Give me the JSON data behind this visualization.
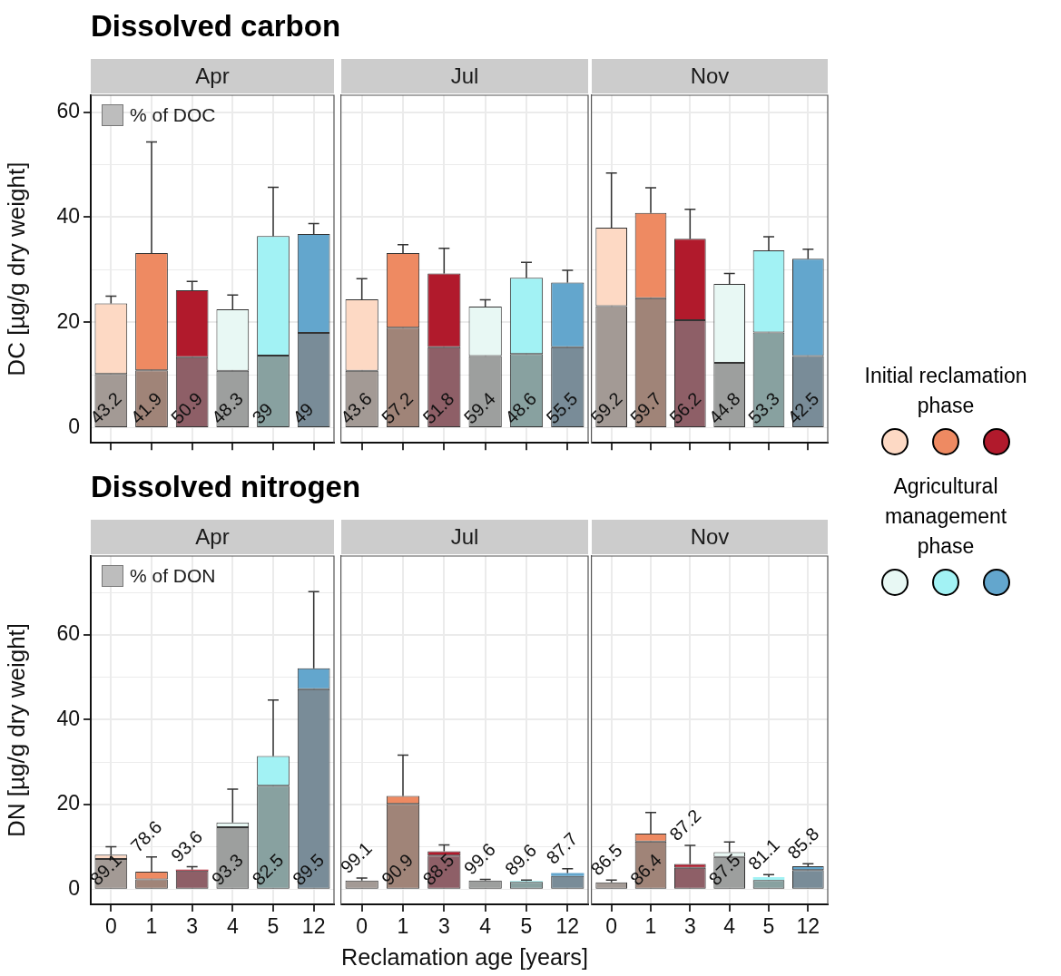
{
  "chart_data": [
    {
      "type": "bar",
      "title": "Apr",
      "subtitle": "Dissolved carbon",
      "ylabel": "DC [µg/g dry weight]",
      "categories": [
        "0",
        "1",
        "3",
        "4",
        "5",
        "12"
      ],
      "stacked": true,
      "ylim": [
        -2.9,
        63.2
      ],
      "yticks": [
        0,
        {
          "value": 10,
          "label": null
        },
        20,
        {
          "value": 30,
          "label": null
        },
        40,
        {
          "value": 50,
          "label": null
        },
        60
      ],
      "grid": true,
      "legend": "top left",
      "tick_labels": "y",
      "annotations": [
        "43.2",
        "41.9",
        "50.9",
        "48.3",
        "39",
        "49"
      ],
      "series": [
        {
          "name": "% of DOC",
          "color": "#bdbdbd",
          "colors": [
            "#a39a95",
            "#a08478",
            "#8e5f67",
            "#9d9f9e",
            "#88a1a0",
            "#798c98"
          ],
          "values": [
            10.2,
            10.9,
            13.4,
            10.8,
            13.7,
            18.0
          ]
        },
        {
          "colors": [
            "#fdd9c4",
            "#ee8a62",
            "#b11a2c",
            "#e8f8f4",
            "#a2f2f4",
            "#63a6cd"
          ],
          "values": [
            13.4,
            22.3,
            12.7,
            11.7,
            22.7,
            18.8
          ],
          "errors": [
            [
              23.6,
              25.0
            ],
            [
              33.2,
              54.3
            ],
            [
              26.1,
              27.8
            ],
            [
              22.5,
              25.2
            ],
            [
              36.4,
              45.7
            ],
            [
              36.8,
              38.8
            ]
          ]
        }
      ]
    },
    {
      "type": "bar",
      "title": "Jul",
      "categories": [
        "0",
        "1",
        "3",
        "4",
        "5",
        "12"
      ],
      "stacked": true,
      "ylim": [
        -2.9,
        63.2
      ],
      "yticks": [
        0,
        {
          "value": 10,
          "label": null
        },
        20,
        {
          "value": 30,
          "label": null
        },
        40,
        {
          "value": 50,
          "label": null
        },
        60
      ],
      "grid": true,
      "tick_labels": false,
      "annotations": [
        "43.6",
        "57.2",
        "51.8",
        "59.4",
        "48.6",
        "55.5"
      ],
      "series": [
        {
          "colors": [
            "#a39a95",
            "#a08478",
            "#8e5f67",
            "#9d9f9e",
            "#88a1a0",
            "#798c98"
          ],
          "values": [
            10.8,
            19.0,
            15.3,
            13.6,
            14.0,
            15.3
          ]
        },
        {
          "colors": [
            "#fdd9c4",
            "#ee8a62",
            "#b11a2c",
            "#e8f8f4",
            "#a2f2f4",
            "#63a6cd"
          ],
          "values": [
            13.6,
            14.2,
            14.0,
            9.4,
            14.5,
            12.3
          ],
          "errors": [
            [
              24.4,
              28.3
            ],
            [
              33.2,
              34.8
            ],
            [
              29.3,
              34.1
            ],
            [
              23.0,
              24.3
            ],
            [
              28.5,
              31.4
            ],
            [
              27.6,
              29.9
            ]
          ]
        }
      ]
    },
    {
      "type": "bar",
      "title": "Nov",
      "categories": [
        "0",
        "1",
        "3",
        "4",
        "5",
        "12"
      ],
      "stacked": true,
      "ylim": [
        -2.9,
        63.2
      ],
      "yticks": [
        0,
        {
          "value": 10,
          "label": null
        },
        20,
        {
          "value": 30,
          "label": null
        },
        40,
        {
          "value": 50,
          "label": null
        },
        60
      ],
      "grid": true,
      "tick_labels": false,
      "annotations": [
        "59.2",
        "59.7",
        "56.2",
        "44.8",
        "53.3",
        "42.5",
        "Initial reclamation phase",
        "Agricultural management phase"
      ],
      "series": [
        {
          "colors": [
            "#a39a95",
            "#a08478",
            "#8e5f67",
            "#9d9f9e",
            "#88a1a0",
            "#798c98"
          ],
          "values": [
            23.1,
            24.6,
            20.4,
            12.3,
            18.1,
            13.6
          ]
        },
        {
          "colors": [
            "#fdd9c4",
            "#ee8a62",
            "#b11a2c",
            "#e8f8f4",
            "#a2f2f4",
            "#63a6cd"
          ],
          "values": [
            14.9,
            16.2,
            15.5,
            15.0,
            15.6,
            18.5
          ],
          "errors": [
            [
              38.0,
              48.4
            ],
            [
              40.8,
              45.6
            ],
            [
              35.9,
              41.5
            ],
            [
              27.3,
              29.3
            ],
            [
              33.7,
              36.3
            ],
            [
              32.1,
              33.9
            ]
          ]
        }
      ]
    },
    {
      "type": "bar",
      "title": "Apr",
      "subtitle": "Dissolved nitrogen",
      "ylabel": "DN [µg/g dry weight]",
      "categories": [
        "0",
        "1",
        "3",
        "4",
        "5",
        "12"
      ],
      "stacked": true,
      "ylim": [
        -3.6,
        78.6
      ],
      "yticks": [
        0,
        {
          "value": 10,
          "label": null
        },
        20,
        {
          "value": 30,
          "label": null
        },
        40,
        {
          "value": 50,
          "label": null
        },
        60,
        {
          "value": 70,
          "label": null
        }
      ],
      "grid": true,
      "legend": "top left",
      "annotations": [
        "89.1",
        "78.6",
        "93.6",
        "93.3",
        "82.5",
        "89.5"
      ],
      "series": [
        {
          "name": "% of DON",
          "color": "#bdbdbd",
          "colors": [
            "#a39a95",
            "#a08478",
            "#8e5f67",
            "#9d9f9e",
            "#88a1a0",
            "#798c98"
          ],
          "values": [
            7.1,
            2.3,
            4.4,
            14.6,
            24.4,
            47.2
          ]
        },
        {
          "colors": [
            "#fdd9c4",
            "#ee8a62",
            "#b11a2c",
            "#e8f8f4",
            "#a2f2f4",
            "#63a6cd"
          ],
          "values": [
            1.0,
            1.8,
            0.2,
            1.1,
            7.0,
            4.9
          ],
          "errors": [
            [
              8.1,
              10.0
            ],
            [
              4.1,
              7.6
            ],
            [
              4.6,
              5.3
            ],
            [
              15.7,
              23.6
            ],
            [
              31.4,
              44.6
            ],
            [
              52.1,
              70.2
            ]
          ]
        }
      ]
    },
    {
      "type": "bar",
      "title": "Jul",
      "xlabel": "Reclamation age [years]",
      "categories": [
        "0",
        "1",
        "3",
        "4",
        "5",
        "12"
      ],
      "stacked": true,
      "ylim": [
        -3.6,
        78.6
      ],
      "yticks": [
        0,
        {
          "value": 10,
          "label": null
        },
        20,
        {
          "value": 30,
          "label": null
        },
        40,
        {
          "value": 50,
          "label": null
        },
        60,
        {
          "value": 70,
          "label": null
        }
      ],
      "grid": true,
      "tick_labels": "x",
      "annotations": [
        "99.1",
        "90.9",
        "88.5",
        "99.6",
        "89.6",
        "87.7"
      ],
      "series": [
        {
          "colors": [
            "#a39a95",
            "#a08478",
            "#8e5f67",
            "#9d9f9e",
            "#88a1a0",
            "#798c98"
          ],
          "values": [
            2.0,
            20.1,
            7.9,
            2.0,
            1.7,
            3.1
          ],
          "errors": [
            [
              2.0,
              2.6
            ],
            null,
            null,
            [
              2.0,
              2.3
            ],
            null,
            null
          ]
        },
        {
          "colors": [
            "#fdd9c4",
            "#ee8a62",
            "#b11a2c",
            "#e8f8f4",
            "#a2f2f4",
            "#63a6cd"
          ],
          "values": [
            null,
            1.9,
            1.0,
            null,
            0.2,
            0.7
          ],
          "errors": [
            null,
            [
              22.0,
              31.6
            ],
            [
              8.9,
              10.4
            ],
            null,
            [
              1.9,
              2.1
            ],
            [
              3.8,
              4.8
            ]
          ]
        }
      ]
    },
    {
      "type": "bar",
      "title": "Nov",
      "categories": [
        "0",
        "1",
        "3",
        "4",
        "5",
        "12"
      ],
      "stacked": true,
      "ylim": [
        -3.6,
        78.6
      ],
      "yticks": [
        0,
        {
          "value": 10,
          "label": null
        },
        20,
        {
          "value": 30,
          "label": null
        },
        40,
        {
          "value": 50,
          "label": null
        },
        60,
        {
          "value": 70,
          "label": null
        }
      ],
      "grid": true,
      "tick_labels": "x",
      "annotations": [
        "86.5",
        "86.4",
        "87.2",
        "87.5",
        "81.1",
        "85.8"
      ],
      "series": [
        {
          "colors": [
            "#a39a95",
            "#a08478",
            "#8e5f67",
            "#9d9f9e",
            "#88a1a0",
            "#798c98"
          ],
          "values": [
            1.6,
            11.2,
            5.0,
            7.6,
            2.1,
            4.5
          ],
          "errors": [
            [
              1.6,
              2.1
            ],
            null,
            null,
            null,
            null,
            null
          ]
        },
        {
          "colors": [
            "#fdd9c4",
            "#ee8a62",
            "#b11a2c",
            "#e8f8f4",
            "#a2f2f4",
            "#63a6cd"
          ],
          "values": [
            null,
            1.9,
            0.9,
            1.1,
            0.7,
            0.9
          ],
          "errors": [
            null,
            [
              13.1,
              18.1
            ],
            [
              5.9,
              10.3
            ],
            [
              8.7,
              11.1
            ],
            [
              2.8,
              3.4
            ],
            [
              5.4,
              6.0
            ]
          ]
        }
      ]
    }
  ]
}
